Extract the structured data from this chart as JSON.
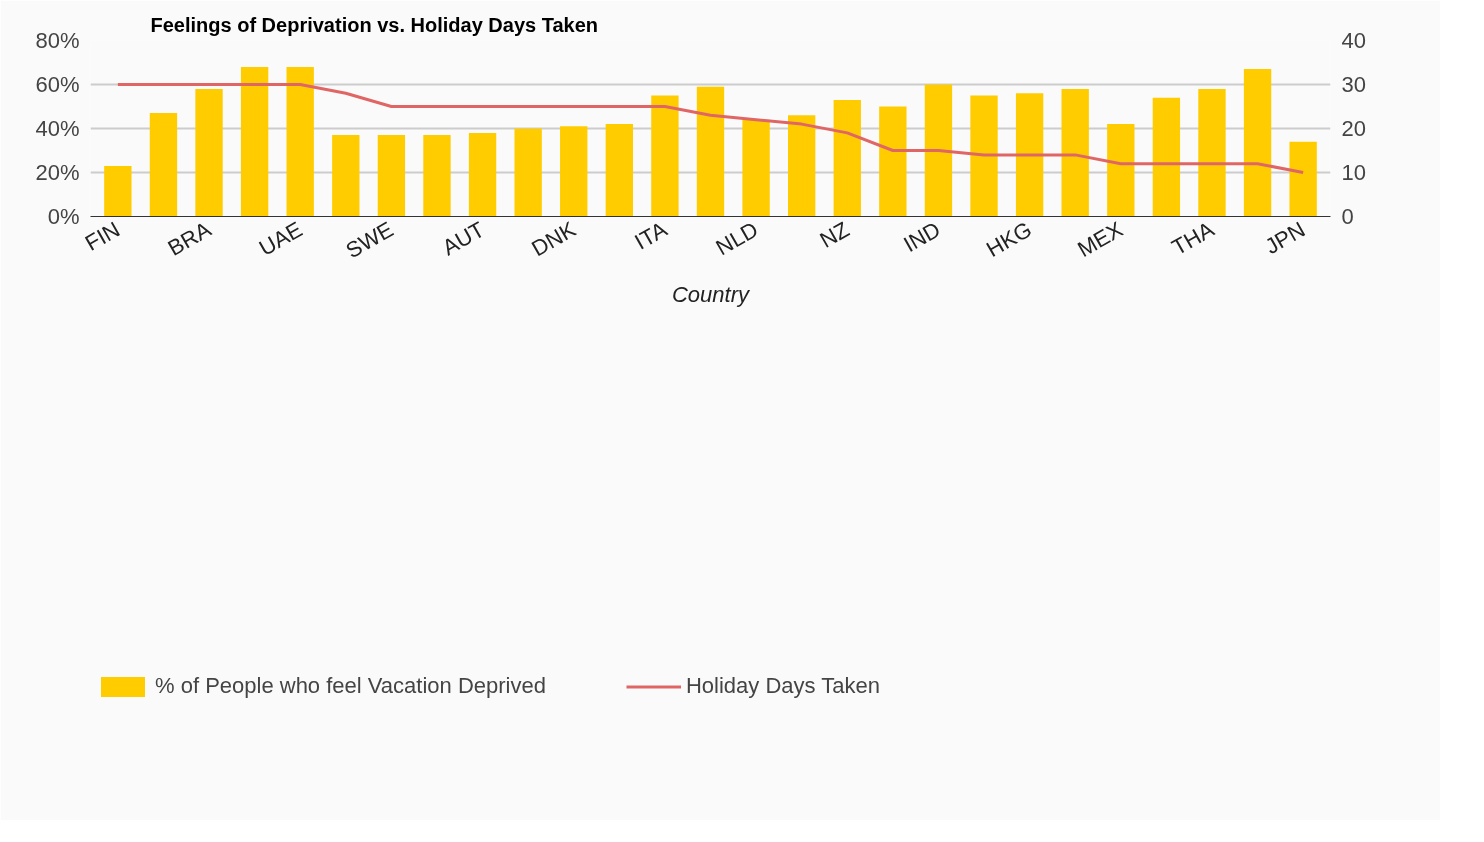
{
  "chart_data": {
    "type": "bar",
    "title": "Feelings of Deprivation vs. Holiday Days Taken",
    "xlabel": "Country",
    "categories": [
      "FIN",
      null,
      "BRA",
      null,
      "UAE",
      null,
      "SWE",
      null,
      "AUT",
      null,
      "DNK",
      null,
      "ITA",
      null,
      "NLD",
      null,
      "NZ",
      null,
      "IND",
      null,
      "HKG",
      null,
      "MEX",
      null,
      "THA",
      null,
      "JPN"
    ],
    "series": [
      {
        "name": "% of People who feel Vacation Deprived",
        "color": "#ffcc00",
        "values": [
          23,
          47,
          58,
          68,
          68,
          37,
          37,
          37,
          38,
          40,
          41,
          42,
          55,
          59,
          44,
          46,
          53,
          50,
          60,
          55,
          56,
          58,
          42,
          54,
          58,
          67,
          34
        ]
      },
      {
        "name": "Holiday Days Taken",
        "type": "line",
        "axis": "y2",
        "color": "#e06666",
        "values": [
          30,
          30,
          30,
          30,
          30,
          28,
          25,
          25,
          25,
          25,
          25,
          25,
          25,
          23,
          22,
          21,
          19,
          15,
          15,
          14,
          14,
          14,
          12,
          12,
          12,
          12,
          10
        ]
      }
    ],
    "ylim": [
      0,
      80
    ],
    "yticks": [
      {
        "value": 0,
        "label": "0%"
      },
      {
        "value": 20,
        "label": "20%"
      },
      {
        "value": 40,
        "label": "40%"
      },
      {
        "value": 60,
        "label": "60%"
      },
      {
        "value": 80,
        "label": "80%"
      }
    ],
    "y2lim": [
      0,
      40
    ],
    "y2ticks": [
      0,
      10,
      20,
      30,
      40
    ],
    "grid": "y",
    "legend": "bottom"
  }
}
